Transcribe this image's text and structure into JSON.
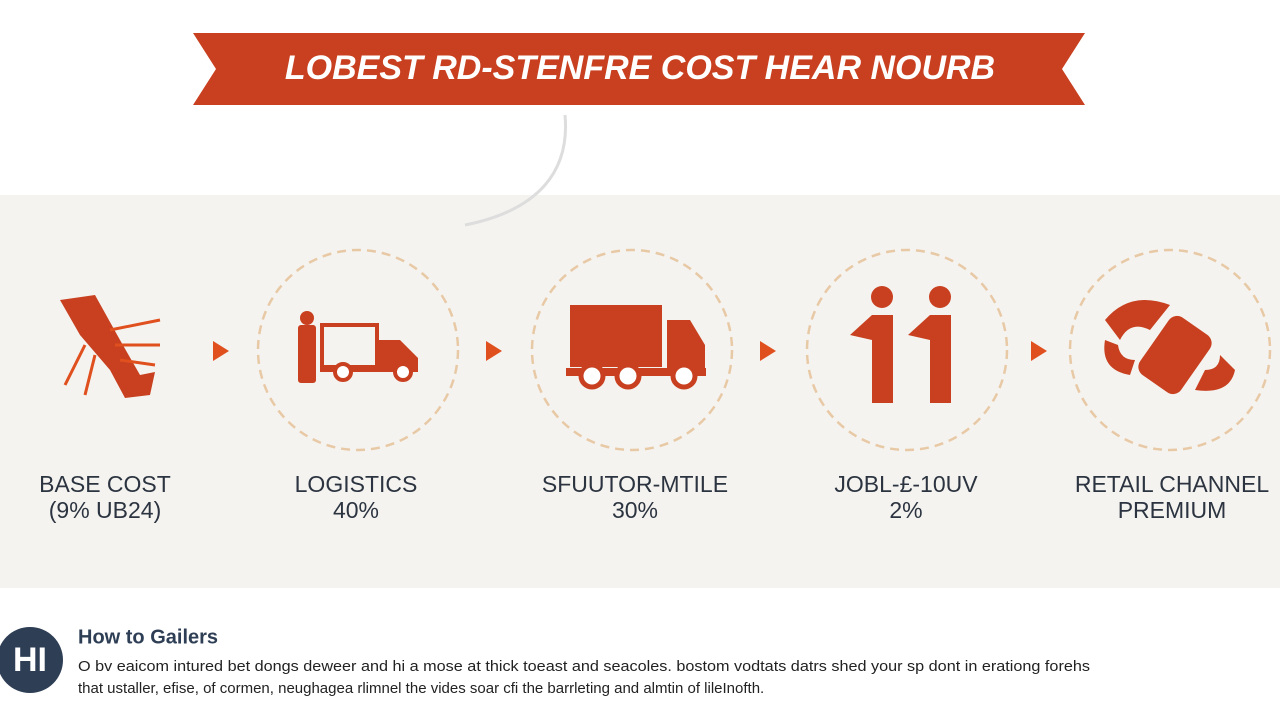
{
  "banner": {
    "title": "LOBEST RD-STENFRE COST HEAR NOURB"
  },
  "steps": [
    {
      "label": "BASE COST",
      "detail": "(9% UB24)"
    },
    {
      "label": "LOGISTICS",
      "detail": "40%"
    },
    {
      "label": "SFUUTOR-MTILE",
      "detail": "30%"
    },
    {
      "label": "JOBL-£-10UV",
      "detail": "2%"
    },
    {
      "label": "RETAIL CHANNEL",
      "detail": "PREMIUM"
    }
  ],
  "footer": {
    "logo": "HI",
    "heading": "How to Gailers",
    "lines": [
      "O bv eaicom intured bet dongs deweer and hi a mose at thick toeast and seacoles. bostom vodtats datrs shed your sp dont in erationg forehs",
      "that ustaller, efise, of cormen, neughagea rlimnel the vides soar cfi the barrleting and almtin of lileInofth."
    ]
  }
}
